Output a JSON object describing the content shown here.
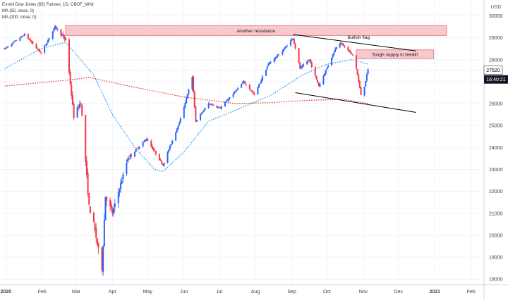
{
  "chart_data": {
    "type": "candlestick",
    "legend_lines": [
      "E-mini Dow Jones ($5) Futures, 1D, CBOT_MINI",
      "MA (50, close, 0)",
      "MA (200, close, 0)"
    ],
    "currency": "USD",
    "price_ticks": [
      18000,
      19000,
      20000,
      21000,
      22000,
      23000,
      24000,
      25000,
      26000,
      27000,
      28000,
      29000,
      30000
    ],
    "ylim": [
      17750,
      30400
    ],
    "time_ticks": [
      "2020",
      "Feb",
      "Mar",
      "Apr",
      "May",
      "Jun",
      "Jul",
      "Aug",
      "Sep",
      "Oct",
      "Nov",
      "Dec",
      "2021",
      "Feb"
    ],
    "last_price": "27520",
    "countdown": "16:40:21",
    "colors": {
      "up": "#2962ff",
      "down": "#f23645",
      "ma50": "#2196f3",
      "ma200": "#e53935",
      "zone_fill": "#f8c8cc",
      "zone_stroke": "#e08890",
      "trendline": "#000000"
    },
    "annotations": {
      "resistance_label": "Another resistance",
      "flag_label": "Bullish flag",
      "supply_label": "Tough supply to break!"
    },
    "series": [
      {
        "name": "Price",
        "style": "candles",
        "anchors": [
          [
            "2019-12-31",
            28500
          ],
          [
            "2020-01-17",
            29150
          ],
          [
            "2020-01-31",
            28300
          ],
          [
            "2020-02-12",
            29500
          ],
          [
            "2020-02-21",
            28900
          ],
          [
            "2020-02-28",
            25400
          ],
          [
            "2020-03-05",
            26100
          ],
          [
            "2020-03-12",
            21300
          ],
          [
            "2020-03-16",
            20500
          ],
          [
            "2020-03-20",
            19300
          ],
          [
            "2020-03-23",
            18500
          ],
          [
            "2020-03-26",
            21800
          ],
          [
            "2020-04-01",
            21000
          ],
          [
            "2020-04-14",
            23500
          ],
          [
            "2020-04-30",
            24400
          ],
          [
            "2020-05-14",
            23200
          ],
          [
            "2020-05-29",
            25300
          ],
          [
            "2020-06-08",
            27200
          ],
          [
            "2020-06-11",
            25200
          ],
          [
            "2020-06-22",
            26000
          ],
          [
            "2020-07-02",
            25800
          ],
          [
            "2020-07-22",
            27000
          ],
          [
            "2020-07-31",
            26400
          ],
          [
            "2020-08-12",
            27800
          ],
          [
            "2020-08-24",
            28400
          ],
          [
            "2020-09-02",
            29000
          ],
          [
            "2020-09-08",
            27600
          ],
          [
            "2020-09-16",
            28000
          ],
          [
            "2020-09-24",
            26800
          ],
          [
            "2020-10-09",
            28600
          ],
          [
            "2020-10-12",
            28800
          ],
          [
            "2020-10-23",
            28200
          ],
          [
            "2020-10-26",
            27600
          ],
          [
            "2020-10-30",
            26400
          ],
          [
            "2020-11-02",
            26800
          ],
          [
            "2020-11-05",
            27550
          ]
        ]
      },
      {
        "name": "MA (50, close, 0)",
        "style": "dotted",
        "anchors": [
          [
            "2019-12-31",
            27600
          ],
          [
            "2020-01-31",
            28500
          ],
          [
            "2020-02-21",
            28800
          ],
          [
            "2020-03-16",
            27300
          ],
          [
            "2020-04-01",
            25500
          ],
          [
            "2020-04-20",
            24000
          ],
          [
            "2020-05-07",
            23000
          ],
          [
            "2020-05-14",
            22900
          ],
          [
            "2020-06-01",
            23800
          ],
          [
            "2020-06-22",
            25200
          ],
          [
            "2020-07-15",
            25700
          ],
          [
            "2020-08-15",
            26400
          ],
          [
            "2020-09-10",
            27300
          ],
          [
            "2020-10-01",
            27800
          ],
          [
            "2020-10-22",
            28000
          ],
          [
            "2020-11-05",
            27800
          ]
        ]
      },
      {
        "name": "MA (200, close, 0)",
        "style": "dotted",
        "anchors": [
          [
            "2019-12-31",
            26800
          ],
          [
            "2020-02-28",
            27100
          ],
          [
            "2020-03-12",
            27200
          ],
          [
            "2020-04-15",
            26800
          ],
          [
            "2020-06-01",
            26300
          ],
          [
            "2020-07-15",
            26000
          ],
          [
            "2020-08-15",
            26050
          ],
          [
            "2020-09-15",
            26150
          ],
          [
            "2020-10-15",
            26200
          ],
          [
            "2020-11-05",
            26000
          ]
        ]
      }
    ],
    "zones": [
      {
        "x0": "2020-02-21",
        "x1": "2021-01-11",
        "y0": 29100,
        "y1": 29550,
        "label_key": "resistance_label"
      },
      {
        "x0": "2020-10-26",
        "x1": "2020-12-31",
        "y0": 28050,
        "y1": 28450,
        "label_key": "supply_label"
      }
    ],
    "trendlines": [
      {
        "from": [
          "2020-09-02",
          29150
        ],
        "to": [
          "2020-12-16",
          28400
        ]
      },
      {
        "from": [
          "2020-09-04",
          26500
        ],
        "to": [
          "2020-12-16",
          25600
        ]
      }
    ]
  }
}
